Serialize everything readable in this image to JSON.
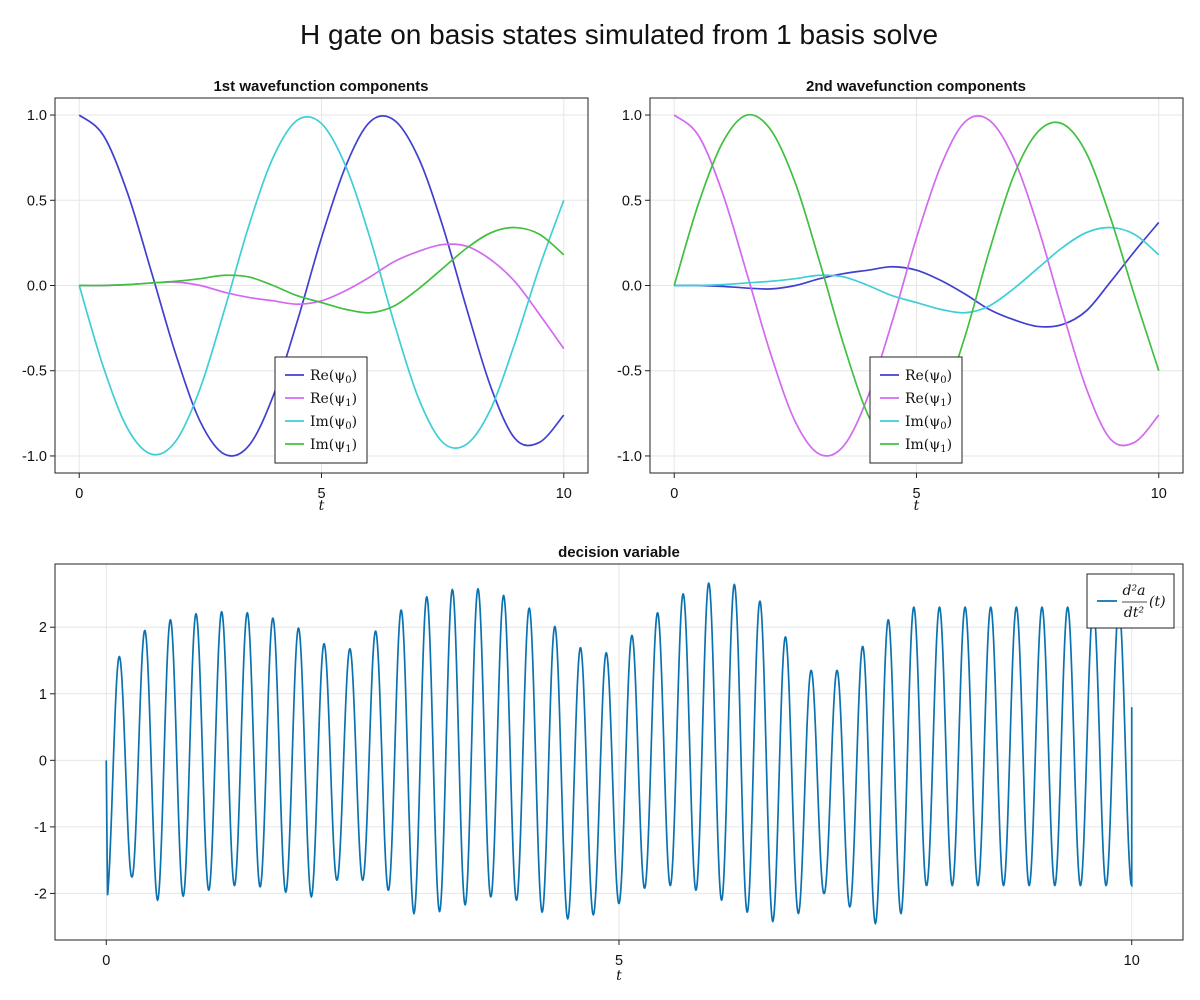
{
  "suptitle": "H gate on basis states simulated from 1 basis solve",
  "colors": {
    "blue": "#4040d0",
    "magenta": "#d26af0",
    "cyan": "#3ecfd6",
    "green": "#40c040",
    "teal": "#0a72b0"
  },
  "chart_data": [
    {
      "type": "line",
      "title": "1st wavefunction components",
      "xlabel": "t",
      "ylabel": "",
      "xlim": [
        -0.5,
        10.5
      ],
      "ylim": [
        -1.1,
        1.1
      ],
      "xticks": [
        0,
        5,
        10
      ],
      "xtick_labels": [
        "0",
        "5",
        "10"
      ],
      "yticks": [
        -1.0,
        -0.5,
        0.0,
        0.5,
        1.0
      ],
      "ytick_labels": [
        "-1.0",
        "-0.5",
        "0.0",
        "0.5",
        "1.0"
      ],
      "grid": true,
      "legend_position": "bottom-center",
      "series": [
        {
          "name": "Re(ψ0)",
          "label_main": "Re(ψ",
          "label_sub": "0",
          "color": "#4040d0",
          "x": [
            0,
            0.5,
            1,
            1.5,
            2,
            2.5,
            3,
            3.5,
            4,
            4.5,
            5,
            5.5,
            6,
            6.5,
            7,
            7.5,
            8,
            8.5,
            9,
            9.5,
            10
          ],
          "y": [
            1.0,
            0.88,
            0.54,
            0.07,
            -0.41,
            -0.8,
            -0.99,
            -0.94,
            -0.65,
            -0.21,
            0.28,
            0.7,
            0.96,
            0.97,
            0.75,
            0.35,
            -0.14,
            -0.6,
            -0.9,
            -0.92,
            -0.76
          ]
        },
        {
          "name": "Re(ψ1)",
          "label_main": "Re(ψ",
          "label_sub": "1",
          "color": "#d26af0",
          "x": [
            0,
            0.5,
            1,
            1.5,
            2,
            2.5,
            3,
            3.5,
            4,
            4.5,
            5,
            5.5,
            6,
            6.5,
            7,
            7.5,
            8,
            8.5,
            9,
            9.5,
            10
          ],
          "y": [
            0.0,
            0.0,
            0.005,
            0.015,
            0.02,
            0.0,
            -0.04,
            -0.07,
            -0.09,
            -0.11,
            -0.09,
            -0.03,
            0.05,
            0.14,
            0.2,
            0.24,
            0.23,
            0.15,
            0.02,
            -0.17,
            -0.37
          ]
        },
        {
          "name": "Im(ψ0)",
          "label_main": "Im(ψ",
          "label_sub": "0",
          "color": "#3ecfd6",
          "x": [
            0,
            0.5,
            1,
            1.5,
            2,
            2.5,
            3,
            3.5,
            4,
            4.5,
            5,
            5.5,
            6,
            6.5,
            7,
            7.5,
            8,
            8.5,
            9,
            9.5,
            10
          ],
          "y": [
            0.0,
            -0.48,
            -0.84,
            -0.99,
            -0.91,
            -0.6,
            -0.14,
            0.35,
            0.75,
            0.97,
            0.95,
            0.7,
            0.28,
            -0.22,
            -0.66,
            -0.92,
            -0.93,
            -0.72,
            -0.33,
            0.11,
            0.5
          ]
        },
        {
          "name": "Im(ψ1)",
          "label_main": "Im(ψ",
          "label_sub": "1",
          "color": "#40c040",
          "x": [
            0,
            0.5,
            1,
            1.5,
            2,
            2.5,
            3,
            3.5,
            4,
            4.5,
            5,
            5.5,
            6,
            6.5,
            7,
            7.5,
            8,
            8.5,
            9,
            9.5,
            10
          ],
          "y": [
            0.0,
            0.0,
            0.005,
            0.015,
            0.025,
            0.04,
            0.06,
            0.05,
            0.0,
            -0.06,
            -0.1,
            -0.14,
            -0.16,
            -0.12,
            -0.02,
            0.1,
            0.22,
            0.31,
            0.34,
            0.3,
            0.18
          ]
        }
      ]
    },
    {
      "type": "line",
      "title": "2nd wavefunction components",
      "xlabel": "t",
      "ylabel": "",
      "xlim": [
        -0.5,
        10.5
      ],
      "ylim": [
        -1.1,
        1.1
      ],
      "xticks": [
        0,
        5,
        10
      ],
      "xtick_labels": [
        "0",
        "5",
        "10"
      ],
      "yticks": [
        -1.0,
        -0.5,
        0.0,
        0.5,
        1.0
      ],
      "ytick_labels": [
        "-1.0",
        "-0.5",
        "0.0",
        "0.5",
        "1.0"
      ],
      "grid": true,
      "legend_position": "bottom-center",
      "series": [
        {
          "name": "Re(ψ0)",
          "label_main": "Re(ψ",
          "label_sub": "0",
          "color": "#4040d0",
          "x": [
            0,
            0.5,
            1,
            1.5,
            2,
            2.5,
            3,
            3.5,
            4,
            4.5,
            5,
            5.5,
            6,
            6.5,
            7,
            7.5,
            8,
            8.5,
            9,
            9.5,
            10
          ],
          "y": [
            0.0,
            0.0,
            -0.005,
            -0.015,
            -0.02,
            0.0,
            0.04,
            0.07,
            0.09,
            0.11,
            0.09,
            0.03,
            -0.05,
            -0.14,
            -0.2,
            -0.24,
            -0.23,
            -0.15,
            0.02,
            0.2,
            0.37
          ]
        },
        {
          "name": "Re(ψ1)",
          "label_main": "Re(ψ",
          "label_sub": "1",
          "color": "#d26af0",
          "x": [
            0,
            0.5,
            1,
            1.5,
            2,
            2.5,
            3,
            3.5,
            4,
            4.5,
            5,
            5.5,
            6,
            6.5,
            7,
            7.5,
            8,
            8.5,
            9,
            9.5,
            10
          ],
          "y": [
            1.0,
            0.88,
            0.54,
            0.07,
            -0.41,
            -0.8,
            -0.99,
            -0.94,
            -0.65,
            -0.21,
            0.28,
            0.7,
            0.96,
            0.97,
            0.75,
            0.35,
            -0.14,
            -0.6,
            -0.9,
            -0.92,
            -0.76
          ]
        },
        {
          "name": "Im(ψ0)",
          "label_main": "Im(ψ",
          "label_sub": "0",
          "color": "#3ecfd6",
          "x": [
            0,
            0.5,
            1,
            1.5,
            2,
            2.5,
            3,
            3.5,
            4,
            4.5,
            5,
            5.5,
            6,
            6.5,
            7,
            7.5,
            8,
            8.5,
            9,
            9.5,
            10
          ],
          "y": [
            0.0,
            0.0,
            0.005,
            0.015,
            0.025,
            0.04,
            0.06,
            0.05,
            0.0,
            -0.06,
            -0.1,
            -0.14,
            -0.16,
            -0.12,
            -0.02,
            0.1,
            0.22,
            0.31,
            0.34,
            0.3,
            0.18
          ]
        },
        {
          "name": "Im(ψ1)",
          "label_main": "Im(ψ",
          "label_sub": "1",
          "color": "#40c040",
          "x": [
            0,
            0.5,
            1,
            1.5,
            2,
            2.5,
            3,
            3.5,
            4,
            4.5,
            5,
            5.5,
            6,
            6.5,
            7,
            7.5,
            8,
            8.5,
            9,
            9.5,
            10
          ],
          "y": [
            0.0,
            0.48,
            0.84,
            1.0,
            0.91,
            0.6,
            0.14,
            -0.35,
            -0.76,
            -0.98,
            -0.96,
            -0.71,
            -0.3,
            0.2,
            0.64,
            0.9,
            0.95,
            0.78,
            0.4,
            -0.06,
            -0.5
          ]
        }
      ]
    },
    {
      "type": "line",
      "title": "decision variable",
      "xlabel": "t",
      "ylabel": "",
      "xlim": [
        -0.5,
        10.5
      ],
      "ylim": [
        -2.7,
        2.95
      ],
      "xticks": [
        0,
        5,
        10
      ],
      "xtick_labels": [
        "0",
        "5",
        "10"
      ],
      "yticks": [
        -2,
        -1,
        0,
        1,
        2
      ],
      "ytick_labels": [
        "-2",
        "-1",
        "0",
        "1",
        "2"
      ],
      "grid": true,
      "legend_position": "top-right",
      "legend_label": "d²a/dt²(t)",
      "legend_num": "d²a",
      "legend_den": "dt²",
      "legend_arg": "(t)",
      "oscillation": {
        "cycles": 40,
        "t_start": 0.0,
        "t_end": 10.0,
        "y_start": 0.0,
        "y_end": 0.8,
        "peak_maxima": [
          1.26,
          1.85,
          2.05,
          2.17,
          2.23,
          2.23,
          2.2,
          2.07,
          1.9,
          1.6,
          1.75,
          2.13,
          2.38,
          2.53,
          2.6,
          2.55,
          2.4,
          2.17,
          1.85,
          1.53,
          1.7,
          2.05,
          2.38,
          2.62,
          2.7,
          2.58,
          2.2,
          1.5,
          1.2,
          1.5,
          1.92,
          2.3
        ],
        "trough_minima": [
          -2.13,
          -1.75,
          -2.1,
          -2.04,
          -1.95,
          -1.88,
          -1.9,
          -1.98,
          -2.05,
          -1.8,
          -1.8,
          -1.95,
          -2.3,
          -2.27,
          -2.17,
          -2.05,
          -2.1,
          -2.28,
          -2.38,
          -2.32,
          -2.15,
          -1.92,
          -1.88,
          -1.95,
          -2.1,
          -2.28,
          -2.42,
          -2.3,
          -2.0,
          -2.2,
          -2.45,
          -2.3,
          -1.88
        ]
      },
      "series": [
        {
          "name": "d²a/dt²(t)",
          "color": "#0a72b0"
        }
      ]
    }
  ]
}
